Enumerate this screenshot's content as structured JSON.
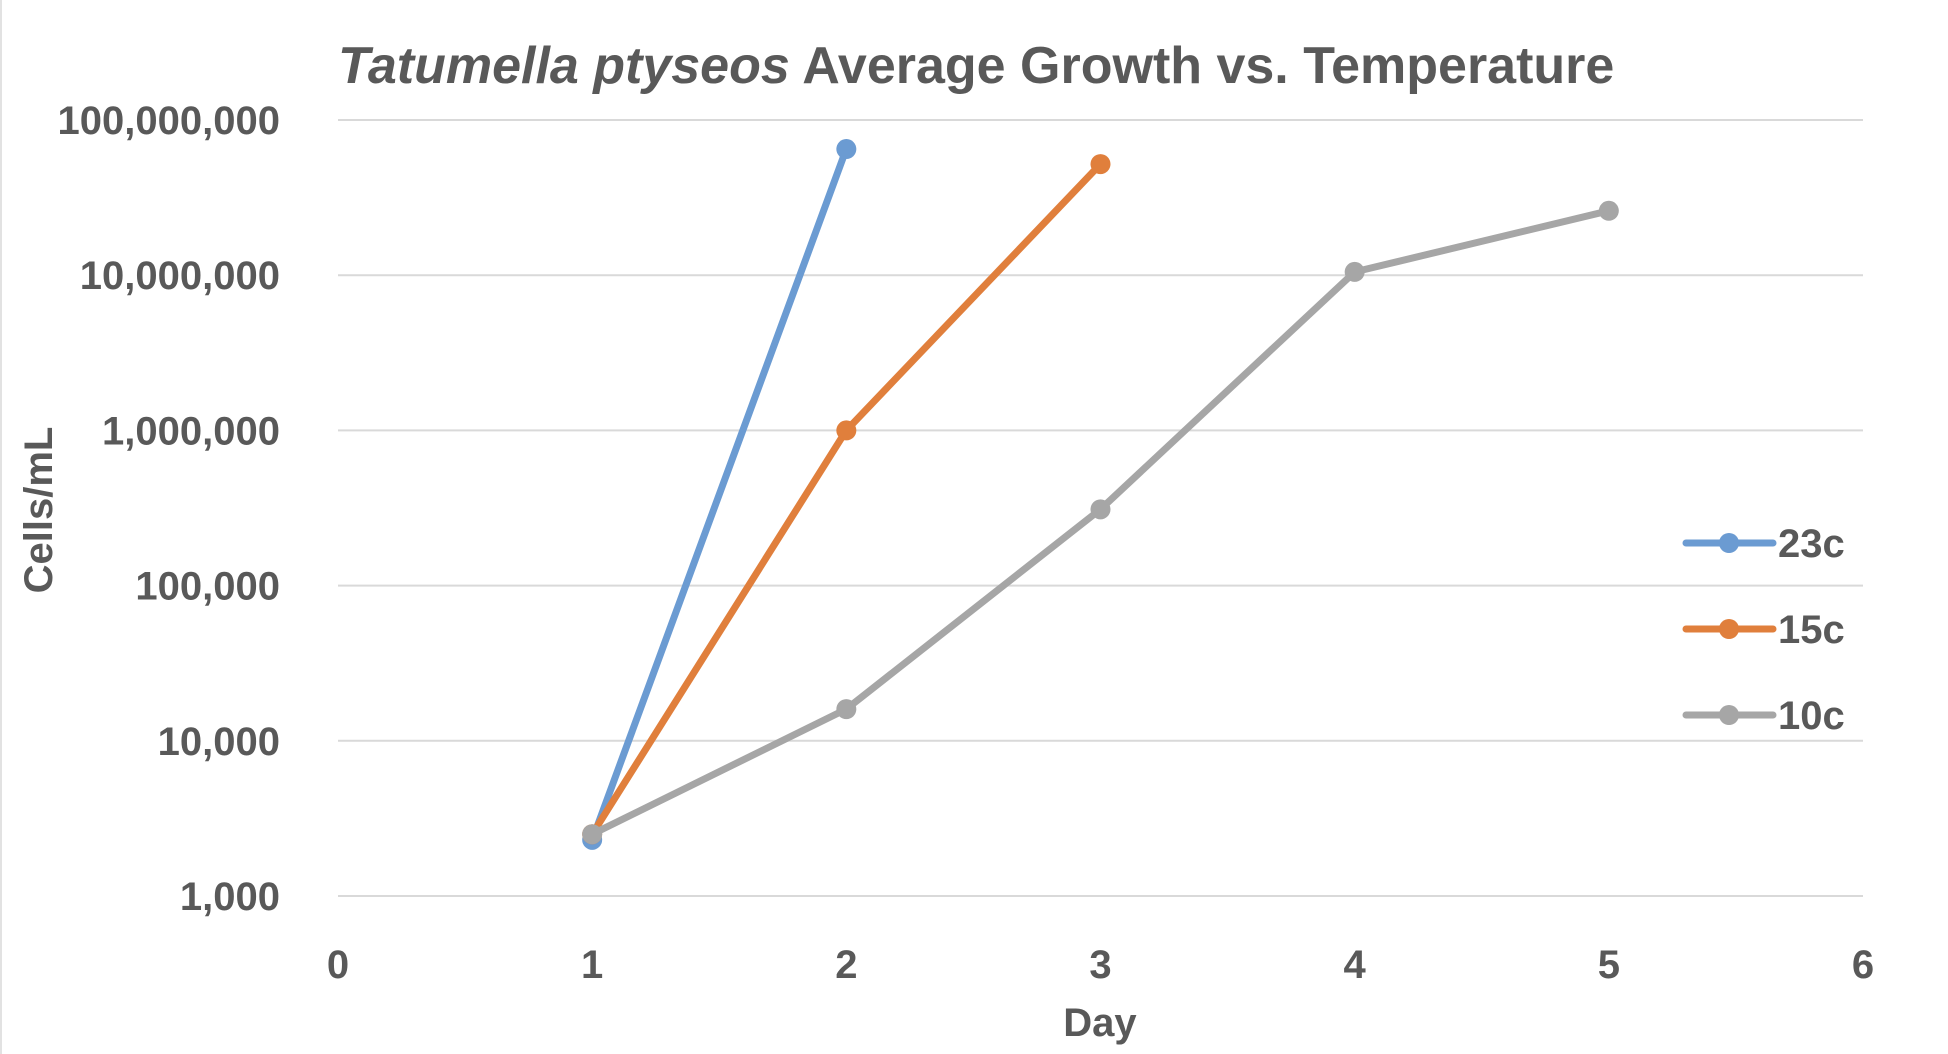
{
  "chart_data": {
    "type": "line",
    "title_italic": "Tatumella ptyseos",
    "title_rest": " Average Growth vs. Temperature",
    "xlabel": "Day",
    "ylabel": "Cells/mL",
    "yscale": "log",
    "xlim": [
      0,
      6
    ],
    "ylim": [
      1000,
      100000000
    ],
    "x_ticks": [
      0,
      1,
      2,
      3,
      4,
      5,
      6
    ],
    "x_tick_labels": [
      "0",
      "1",
      "2",
      "3",
      "4",
      "5",
      "6"
    ],
    "y_ticks": [
      1000,
      10000,
      100000,
      1000000,
      10000000,
      100000000
    ],
    "y_tick_labels": [
      "1,000",
      "10,000",
      "100,000",
      "1,000,000",
      "10,000,000",
      "100,000,000"
    ],
    "grid": true,
    "legend_position": "right",
    "series": [
      {
        "name": "23c",
        "color": "#6b9bd2",
        "x": [
          1,
          2
        ],
        "values": [
          2300,
          65000000
        ]
      },
      {
        "name": "15c",
        "color": "#e07f3c",
        "x": [
          1,
          2,
          3
        ],
        "values": [
          2500,
          1000000,
          52000000
        ]
      },
      {
        "name": "10c",
        "color": "#a6a6a6",
        "x": [
          1,
          2,
          3,
          4,
          5
        ],
        "values": [
          2500,
          16000,
          310000,
          10500000,
          26000000
        ]
      }
    ]
  }
}
